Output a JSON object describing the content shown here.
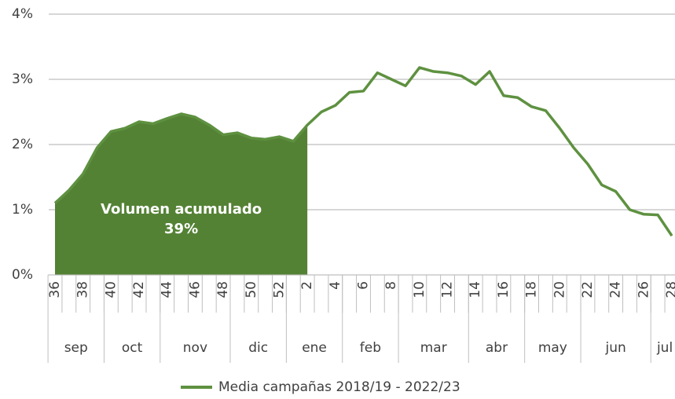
{
  "chart_data": {
    "type": "line",
    "categories": [
      36,
      null,
      38,
      null,
      40,
      null,
      42,
      null,
      44,
      null,
      46,
      null,
      48,
      null,
      50,
      null,
      52,
      null,
      2,
      null,
      4,
      null,
      6,
      null,
      8,
      null,
      10,
      null,
      12,
      null,
      14,
      null,
      16,
      null,
      18,
      null,
      20,
      null,
      22,
      null,
      24,
      null,
      26,
      null,
      28
    ],
    "month_groups": [
      {
        "label": "sep",
        "weeks": 4
      },
      {
        "label": "oct",
        "weeks": 4
      },
      {
        "label": "nov",
        "weeks": 5
      },
      {
        "label": "dic",
        "weeks": 4
      },
      {
        "label": "ene",
        "weeks": 4
      },
      {
        "label": "feb",
        "weeks": 4
      },
      {
        "label": "mar",
        "weeks": 5
      },
      {
        "label": "abr",
        "weeks": 4
      },
      {
        "label": "may",
        "weeks": 4
      },
      {
        "label": "jun",
        "weeks": 5
      },
      {
        "label": "jul",
        "weeks": 2
      }
    ],
    "series": [
      {
        "name": "Media campañas 2018/19 - 2022/23",
        "color": "#5e9140",
        "values": [
          1.1,
          1.3,
          1.55,
          1.95,
          2.2,
          2.25,
          2.35,
          2.32,
          2.4,
          2.47,
          2.42,
          2.3,
          2.15,
          2.18,
          2.1,
          2.08,
          2.12,
          2.05,
          2.3,
          2.5,
          2.6,
          2.8,
          2.82,
          3.1,
          3.0,
          2.9,
          3.18,
          3.12,
          3.1,
          3.05,
          2.92,
          3.12,
          2.75,
          2.72,
          2.58,
          2.52,
          2.25,
          1.95,
          1.7,
          1.38,
          1.28,
          1.0,
          0.93,
          0.92,
          0.6
        ]
      }
    ],
    "shaded_area": {
      "from_week": 36,
      "to_week": 2,
      "color": "#548235",
      "text": [
        "Volumen acumulado",
        "39%"
      ]
    },
    "ylim": [
      0,
      4
    ],
    "yticks": [
      {
        "value": 0,
        "label": "0%"
      },
      {
        "value": 1,
        "label": "1%"
      },
      {
        "value": 2,
        "label": "2%"
      },
      {
        "value": 3,
        "label": "3%"
      },
      {
        "value": 4,
        "label": "4%"
      }
    ],
    "grid": true,
    "legend": "bottom"
  }
}
